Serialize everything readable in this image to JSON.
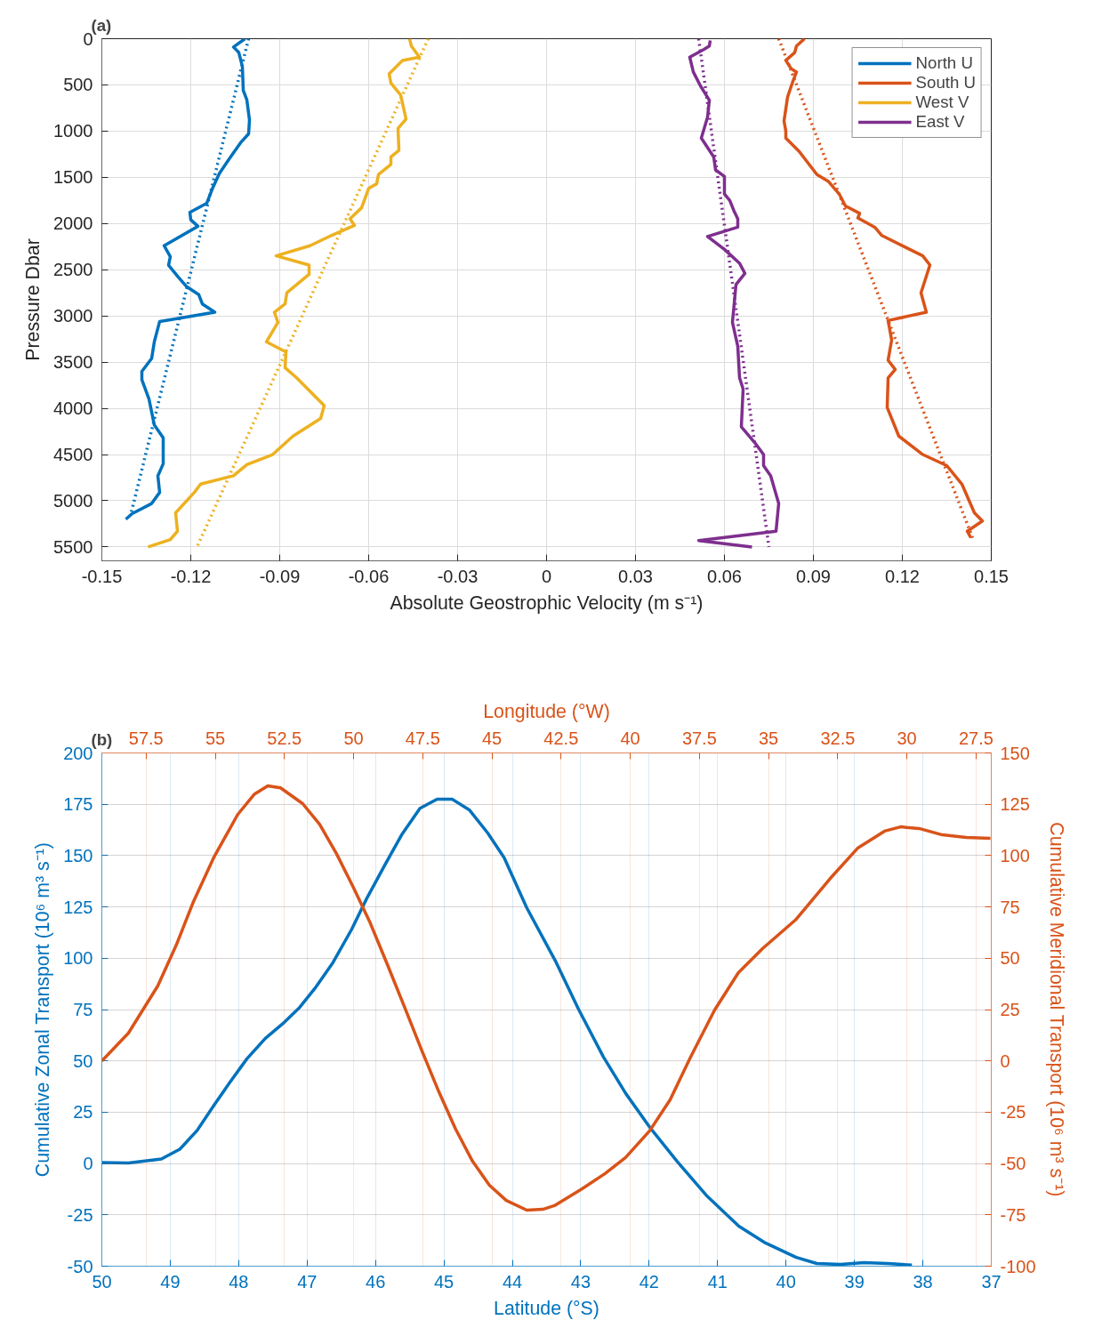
{
  "chart_data": [
    {
      "type": "line",
      "title": "(a)",
      "xlabel": "Absolute Geostrophic Velocity (m s⁻¹)",
      "ylabel": "Pressure Dbar",
      "xlim": [
        -0.15,
        0.15
      ],
      "xticks": [
        -0.15,
        -0.12,
        -0.09,
        -0.06,
        -0.03,
        0,
        0.03,
        0.06,
        0.09,
        0.12,
        0.15
      ],
      "ylim": [
        5650,
        0
      ],
      "yticks": [
        0,
        500,
        1000,
        1500,
        2000,
        2500,
        3000,
        3500,
        4000,
        4500,
        5000,
        5500
      ],
      "grid": true,
      "legend": "top right",
      "line_style": "solid",
      "series": [
        {
          "name": "North U",
          "color": "#0072bd",
          "x": [
            -0.1017,
            -0.1056,
            -0.1038,
            -0.1026,
            -0.1023,
            -0.1011,
            -0.1002,
            -0.1005,
            -0.1032,
            -0.1068,
            -0.1104,
            -0.1128,
            -0.1146,
            -0.1203,
            -0.12,
            -0.1176,
            -0.129,
            -0.1269,
            -0.1275,
            -0.1242,
            -0.1215,
            -0.1173,
            -0.1161,
            -0.1119,
            -0.1305,
            -0.1323,
            -0.1332,
            -0.1365,
            -0.1365,
            -0.1341,
            -0.1323,
            -0.1293,
            -0.1293,
            -0.1311,
            -0.1305,
            -0.1332,
            -0.1398,
            -0.1419
          ],
          "values": [
            0,
            90,
            150,
            300,
            560,
            660,
            880,
            1030,
            1125,
            1290,
            1460,
            1630,
            1780,
            1880,
            1960,
            2030,
            2240,
            2360,
            2450,
            2580,
            2680,
            2770,
            2870,
            2960,
            3060,
            3280,
            3460,
            3600,
            3690,
            3900,
            4180,
            4320,
            4600,
            4730,
            4910,
            5030,
            5140,
            5200
          ]
        },
        {
          "name": "South U",
          "color": "#d95319",
          "x": [
            0.087,
            0.0843,
            0.0837,
            0.0807,
            0.0825,
            0.0843,
            0.0831,
            0.0813,
            0.0801,
            0.0807,
            0.0807,
            0.0852,
            0.0912,
            0.0951,
            0.0987,
            0.1008,
            0.1056,
            0.105,
            0.1107,
            0.1131,
            0.1269,
            0.1293,
            0.1263,
            0.1281,
            0.1152,
            0.1164,
            0.1152,
            0.1176,
            0.1152,
            0.1149,
            0.1188,
            0.1269,
            0.135,
            0.1401,
            0.1443,
            0.147,
            0.1419,
            0.1431
          ],
          "values": [
            0,
            80,
            150,
            235,
            325,
            360,
            460,
            630,
            890,
            1000,
            1075,
            1220,
            1470,
            1545,
            1680,
            1810,
            1890,
            1940,
            2040,
            2130,
            2350,
            2450,
            2750,
            2960,
            3050,
            3260,
            3480,
            3580,
            3670,
            3990,
            4300,
            4500,
            4620,
            4820,
            5130,
            5220,
            5330,
            5400
          ]
        },
        {
          "name": "West V",
          "color": "#edb120",
          "x": [
            -0.0462,
            -0.0456,
            -0.0429,
            -0.0486,
            -0.0531,
            -0.0525,
            -0.0492,
            -0.0474,
            -0.0501,
            -0.0498,
            -0.0525,
            -0.0525,
            -0.0567,
            -0.0573,
            -0.06,
            -0.0624,
            -0.0663,
            -0.0648,
            -0.0726,
            -0.0798,
            -0.0912,
            -0.0801,
            -0.0801,
            -0.0876,
            -0.0882,
            -0.0918,
            -0.0906,
            -0.0945,
            -0.0879,
            -0.0882,
            -0.0843,
            -0.075,
            -0.0762,
            -0.0855,
            -0.0924,
            -0.1011,
            -0.1056,
            -0.1167,
            -0.1188,
            -0.1251,
            -0.1245,
            -0.1269,
            -0.1344
          ],
          "values": [
            0,
            80,
            200,
            235,
            380,
            480,
            610,
            870,
            970,
            1210,
            1280,
            1360,
            1470,
            1570,
            1620,
            1830,
            1950,
            2020,
            2130,
            2240,
            2350,
            2450,
            2550,
            2750,
            2870,
            2960,
            3070,
            3280,
            3390,
            3560,
            3670,
            3970,
            4110,
            4300,
            4500,
            4610,
            4730,
            4820,
            4910,
            5130,
            5330,
            5420,
            5500
          ]
        },
        {
          "name": "East V",
          "color": "#7e2f8e",
          "x": [
            0.0552,
            0.0549,
            0.0531,
            0.0483,
            0.0495,
            0.0519,
            0.0549,
            0.0543,
            0.0522,
            0.0564,
            0.057,
            0.06,
            0.06,
            0.0618,
            0.0633,
            0.0645,
            0.0645,
            0.0543,
            0.06,
            0.0651,
            0.0669,
            0.0639,
            0.0627,
            0.0645,
            0.0651,
            0.0663,
            0.0657,
            0.0702,
            0.0732,
            0.0732,
            0.0756,
            0.0783,
            0.0774,
            0.0513,
            0.0693
          ],
          "values": [
            20,
            80,
            115,
            200,
            360,
            510,
            665,
            850,
            1075,
            1280,
            1420,
            1490,
            1680,
            1750,
            1870,
            1950,
            2040,
            2140,
            2280,
            2430,
            2540,
            2660,
            3070,
            3330,
            3670,
            3790,
            4200,
            4370,
            4500,
            4620,
            4730,
            5030,
            5330,
            5430,
            5500
          ]
        },
        {
          "color": "#0072bd",
          "line_style": "dotted",
          "x": [
            -0.1005,
            -0.1401
          ],
          "values": [
            0,
            5130
          ]
        },
        {
          "color": "#d95319",
          "line_style": "dotted",
          "x": [
            0.0783,
            0.1437
          ],
          "values": [
            0,
            5400
          ]
        },
        {
          "color": "#edb120",
          "line_style": "dotted",
          "x": [
            -0.0399,
            -0.1179
          ],
          "values": [
            0,
            5500
          ]
        },
        {
          "color": "#7e2f8e",
          "line_style": "dotted",
          "x": [
            0.0513,
            0.075
          ],
          "values": [
            0,
            5500
          ]
        }
      ]
    },
    {
      "type": "line",
      "title": "(b)",
      "xlabel": "Latitude (°S)",
      "ylabel": "Cumulative Zonal Transport (10⁶ m³ s⁻¹)",
      "xlim": [
        50,
        37
      ],
      "xticks": [
        50,
        49,
        48,
        47,
        46,
        45,
        44,
        43,
        42,
        41,
        40,
        39,
        38,
        37
      ],
      "ylim": [
        -50,
        200
      ],
      "yticks": [
        -50,
        -25,
        0,
        25,
        50,
        75,
        100,
        125,
        150,
        175,
        200
      ],
      "grid": true,
      "line_style": "solid",
      "series": [
        {
          "color": "#0072bd",
          "x": [
            50,
            49.61,
            49.13,
            48.86,
            48.61,
            48.36,
            48.14,
            47.88,
            47.61,
            47.36,
            47.11,
            46.87,
            46.62,
            46.35,
            46.13,
            45.87,
            45.62,
            45.35,
            45.1,
            44.88,
            44.63,
            44.36,
            44.12,
            43.79,
            43.36,
            43.03,
            42.67,
            42.34,
            41.99,
            41.59,
            41.15,
            40.69,
            40.3,
            39.85,
            39.55,
            39.2,
            38.86,
            38.51,
            38.16
          ],
          "values": [
            0.5,
            0.3,
            2.2,
            7,
            16,
            28.4,
            39,
            51,
            61,
            68,
            76,
            86,
            98,
            114,
            129,
            145,
            160,
            173,
            177.5,
            177.5,
            172.3,
            161,
            149,
            124.6,
            98,
            75,
            52,
            34,
            17.6,
            1,
            -16,
            -30.5,
            -38.7,
            -45.7,
            -48.7,
            -49.1,
            -48.3,
            -48.7,
            -49.5
          ]
        }
      ]
    },
    {
      "type": "line",
      "xlabel": "Longitude (°W)",
      "ylabel": "Cumulative Meridional Transport (10⁶ m³ s⁻¹)",
      "xlim": [
        59.1,
        26.95
      ],
      "xticks": [
        57.5,
        55,
        52.5,
        50,
        47.5,
        45,
        42.5,
        40,
        37.5,
        35,
        32.5,
        30,
        27.5
      ],
      "ylim": [
        -100,
        150
      ],
      "yticks": [
        -100,
        -75,
        -50,
        -25,
        0,
        25,
        50,
        75,
        100,
        125,
        150
      ],
      "grid": true,
      "line_style": "solid",
      "series": [
        {
          "color": "#d95319",
          "x": [
            59.1,
            58.14,
            57.08,
            56.41,
            55.8,
            55.06,
            54.19,
            53.58,
            53.1,
            52.64,
            51.84,
            51.23,
            50.62,
            50.01,
            49.4,
            48.79,
            48.14,
            47.53,
            46.92,
            46.31,
            45.7,
            45.09,
            44.48,
            43.74,
            43.16,
            42.74,
            41.74,
            40.91,
            40.17,
            39.3,
            38.56,
            37.82,
            36.95,
            36.09,
            35.22,
            34.0,
            32.77,
            31.78,
            30.81,
            30.23,
            29.56,
            28.72,
            27.85,
            26.98
          ],
          "values": [
            0,
            13.5,
            36.5,
            56.4,
            77.2,
            98.9,
            120,
            130,
            134,
            133,
            125.3,
            115.3,
            101,
            84.6,
            67.2,
            47.3,
            25.6,
            4.9,
            -15,
            -33.3,
            -48.9,
            -60.6,
            -68,
            -72.7,
            -72.3,
            -70.5,
            -62.3,
            -54.9,
            -47.1,
            -34.1,
            -19,
            1.8,
            24.8,
            43,
            54.7,
            69,
            88.9,
            103.6,
            111.9,
            114,
            113.2,
            110.1,
            108.8,
            108.4
          ]
        }
      ]
    }
  ]
}
